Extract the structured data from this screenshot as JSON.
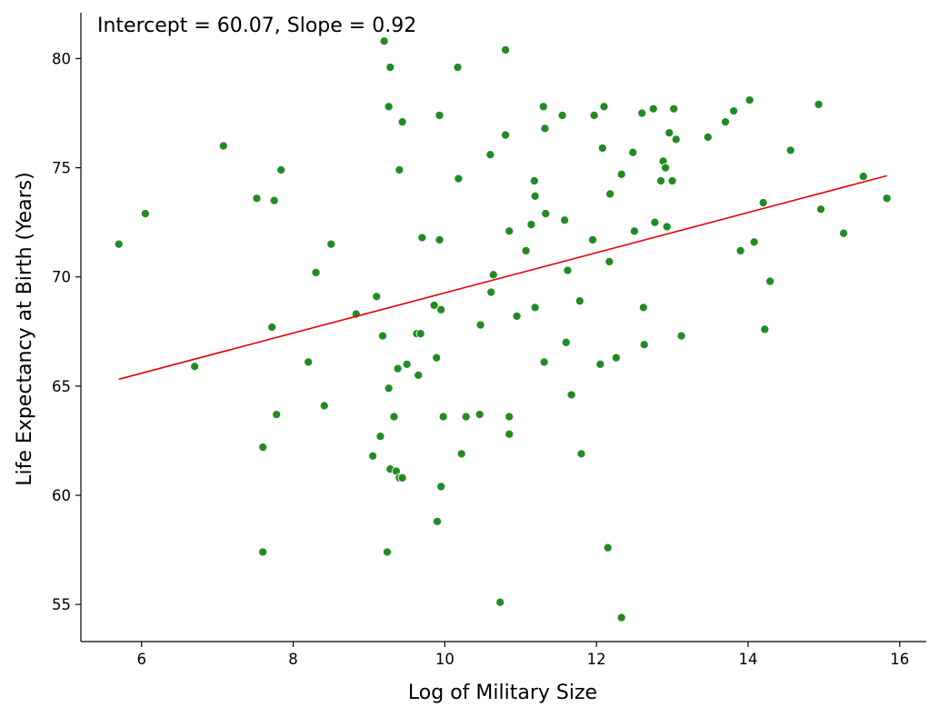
{
  "chart_data": {
    "type": "scatter",
    "annotation": "Intercept = 60.07, Slope = 0.92",
    "xlabel": "Log of Military Size",
    "ylabel": "Life Expectancy at Birth (Years)",
    "xlim": [
      5.2,
      16.35
    ],
    "ylim": [
      53.3,
      82.1
    ],
    "x_ticks": [
      6,
      8,
      10,
      12,
      14,
      16
    ],
    "y_ticks": [
      55,
      60,
      65,
      70,
      75,
      80
    ],
    "grid": false,
    "point_color": "#228b22",
    "line_color": "#e50000",
    "regression": {
      "intercept": 60.07,
      "slope": 0.92,
      "x_range": [
        5.7,
        15.83
      ]
    },
    "points": [
      [
        5.7,
        71.5
      ],
      [
        6.05,
        72.9
      ],
      [
        6.7,
        65.9
      ],
      [
        7.08,
        76.0
      ],
      [
        7.52,
        73.6
      ],
      [
        7.6,
        62.2
      ],
      [
        7.6,
        57.4
      ],
      [
        7.72,
        67.7
      ],
      [
        7.75,
        73.5
      ],
      [
        7.78,
        63.7
      ],
      [
        7.84,
        74.9
      ],
      [
        8.2,
        66.1
      ],
      [
        8.3,
        70.2
      ],
      [
        8.41,
        64.1
      ],
      [
        8.5,
        71.5
      ],
      [
        8.83,
        68.3
      ],
      [
        9.05,
        61.8
      ],
      [
        9.1,
        69.1
      ],
      [
        9.15,
        62.7
      ],
      [
        9.18,
        67.3
      ],
      [
        9.2,
        80.8
      ],
      [
        9.24,
        57.4
      ],
      [
        9.26,
        77.8
      ],
      [
        9.26,
        64.9
      ],
      [
        9.28,
        79.6
      ],
      [
        9.28,
        61.2
      ],
      [
        9.33,
        63.6
      ],
      [
        9.36,
        61.1
      ],
      [
        9.38,
        65.8
      ],
      [
        9.4,
        74.9
      ],
      [
        9.4,
        60.8
      ],
      [
        9.44,
        77.1
      ],
      [
        9.44,
        60.8
      ],
      [
        9.5,
        66.0
      ],
      [
        9.63,
        67.4
      ],
      [
        9.65,
        65.5
      ],
      [
        9.68,
        67.4
      ],
      [
        9.7,
        71.8
      ],
      [
        9.86,
        68.7
      ],
      [
        9.89,
        66.3
      ],
      [
        9.9,
        58.8
      ],
      [
        9.93,
        77.4
      ],
      [
        9.93,
        71.7
      ],
      [
        9.95,
        68.5
      ],
      [
        9.95,
        60.4
      ],
      [
        9.98,
        63.6
      ],
      [
        10.17,
        79.6
      ],
      [
        10.18,
        74.5
      ],
      [
        10.22,
        61.9
      ],
      [
        10.28,
        63.6
      ],
      [
        10.46,
        63.7
      ],
      [
        10.47,
        67.8
      ],
      [
        10.6,
        75.6
      ],
      [
        10.61,
        69.3
      ],
      [
        10.64,
        70.1
      ],
      [
        10.73,
        55.1
      ],
      [
        10.8,
        76.5
      ],
      [
        10.8,
        80.4
      ],
      [
        10.85,
        72.1
      ],
      [
        10.85,
        63.6
      ],
      [
        10.85,
        62.8
      ],
      [
        10.95,
        68.2
      ],
      [
        11.07,
        71.2
      ],
      [
        11.14,
        72.4
      ],
      [
        11.18,
        74.4
      ],
      [
        11.19,
        73.7
      ],
      [
        11.19,
        68.6
      ],
      [
        11.3,
        77.8
      ],
      [
        11.31,
        66.1
      ],
      [
        11.32,
        76.8
      ],
      [
        11.33,
        72.9
      ],
      [
        11.55,
        77.4
      ],
      [
        11.58,
        72.6
      ],
      [
        11.6,
        67.0
      ],
      [
        11.62,
        70.3
      ],
      [
        11.67,
        64.6
      ],
      [
        11.78,
        68.9
      ],
      [
        11.8,
        61.9
      ],
      [
        11.95,
        71.7
      ],
      [
        11.97,
        77.4
      ],
      [
        12.05,
        66.0
      ],
      [
        12.08,
        75.9
      ],
      [
        12.1,
        77.8
      ],
      [
        12.15,
        57.6
      ],
      [
        12.17,
        70.7
      ],
      [
        12.18,
        73.8
      ],
      [
        12.26,
        66.3
      ],
      [
        12.33,
        74.7
      ],
      [
        12.33,
        54.4
      ],
      [
        12.48,
        75.7
      ],
      [
        12.5,
        72.1
      ],
      [
        12.6,
        77.5
      ],
      [
        12.62,
        68.6
      ],
      [
        12.63,
        66.9
      ],
      [
        12.75,
        77.7
      ],
      [
        12.77,
        72.5
      ],
      [
        12.85,
        74.4
      ],
      [
        12.88,
        75.3
      ],
      [
        12.91,
        75.0
      ],
      [
        12.93,
        72.3
      ],
      [
        12.96,
        76.6
      ],
      [
        13.0,
        74.4
      ],
      [
        13.02,
        77.7
      ],
      [
        13.05,
        76.3
      ],
      [
        13.12,
        67.3
      ],
      [
        13.47,
        76.4
      ],
      [
        13.7,
        77.1
      ],
      [
        13.81,
        77.6
      ],
      [
        13.9,
        71.2
      ],
      [
        14.02,
        78.1
      ],
      [
        14.08,
        71.6
      ],
      [
        14.2,
        73.4
      ],
      [
        14.22,
        67.6
      ],
      [
        14.29,
        69.8
      ],
      [
        14.56,
        75.8
      ],
      [
        14.93,
        77.9
      ],
      [
        14.96,
        73.1
      ],
      [
        15.26,
        72.0
      ],
      [
        15.52,
        74.6
      ],
      [
        15.83,
        73.6
      ]
    ]
  }
}
